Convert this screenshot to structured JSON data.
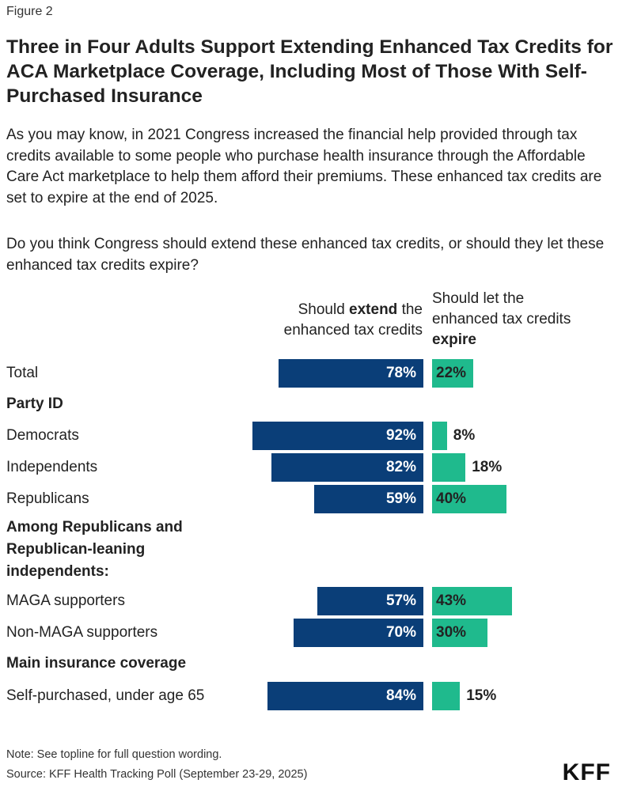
{
  "figure_label": "Figure 2",
  "title": "Three in Four Adults Support Extending Enhanced Tax Credits for ACA Marketplace Coverage, Including Most of Those With Self-Purchased Insurance",
  "subtitle": "As you may know, in 2021 Congress increased the financial help provided through tax credits available to some people who purchase health insurance through the Affordable Care Act marketplace to help them afford their premiums. These enhanced tax credits are set to expire at the end of 2025.",
  "question": "Do you think Congress should extend these enhanced tax credits, or should they let these enhanced tax credits expire?",
  "columns": {
    "extend": {
      "pre": "Should ",
      "bold": "extend",
      "post1": " the",
      "line2": "enhanced tax credits"
    },
    "expire": {
      "line1": "Should let the",
      "line2": "enhanced tax credits",
      "bold": "expire"
    }
  },
  "colors": {
    "extend": "#0a3e78",
    "expire": "#1fba8d"
  },
  "chart_data": {
    "type": "bar",
    "orientation": "horizontal-diverging",
    "unit": "%",
    "series": [
      {
        "name": "Should extend the enhanced tax credits",
        "key": "extend"
      },
      {
        "name": "Should let the enhanced tax credits expire",
        "key": "expire"
      }
    ],
    "rows": [
      {
        "kind": "item",
        "label": "Total",
        "extend": 78,
        "expire": 22,
        "extend_label": "78%",
        "expire_label": "22%"
      },
      {
        "kind": "group",
        "label": "Party ID"
      },
      {
        "kind": "item",
        "label": "Democrats",
        "extend": 92,
        "expire": 8,
        "extend_label": "92%",
        "expire_label": "8%"
      },
      {
        "kind": "item",
        "label": "Independents",
        "extend": 82,
        "expire": 18,
        "extend_label": "82%",
        "expire_label": "18%"
      },
      {
        "kind": "item",
        "label": "Republicans",
        "extend": 59,
        "expire": 40,
        "extend_label": "59%",
        "expire_label": "40%"
      },
      {
        "kind": "group",
        "label": "Among Republicans and Republican-leaning independents:"
      },
      {
        "kind": "item",
        "label": "MAGA supporters",
        "extend": 57,
        "expire": 43,
        "extend_label": "57%",
        "expire_label": "43%"
      },
      {
        "kind": "item",
        "label": "Non-MAGA supporters",
        "extend": 70,
        "expire": 30,
        "extend_label": "70%",
        "expire_label": "30%"
      },
      {
        "kind": "group",
        "label": "Main insurance coverage"
      },
      {
        "kind": "item",
        "label": "Self-purchased, under age 65",
        "extend": 84,
        "expire": 15,
        "extend_label": "84%",
        "expire_label": "15%"
      }
    ]
  },
  "note": "Note: See topline for full question wording.",
  "source": "Source: KFF Health Tracking Poll (September 23-29, 2025)",
  "logo": "KFF"
}
